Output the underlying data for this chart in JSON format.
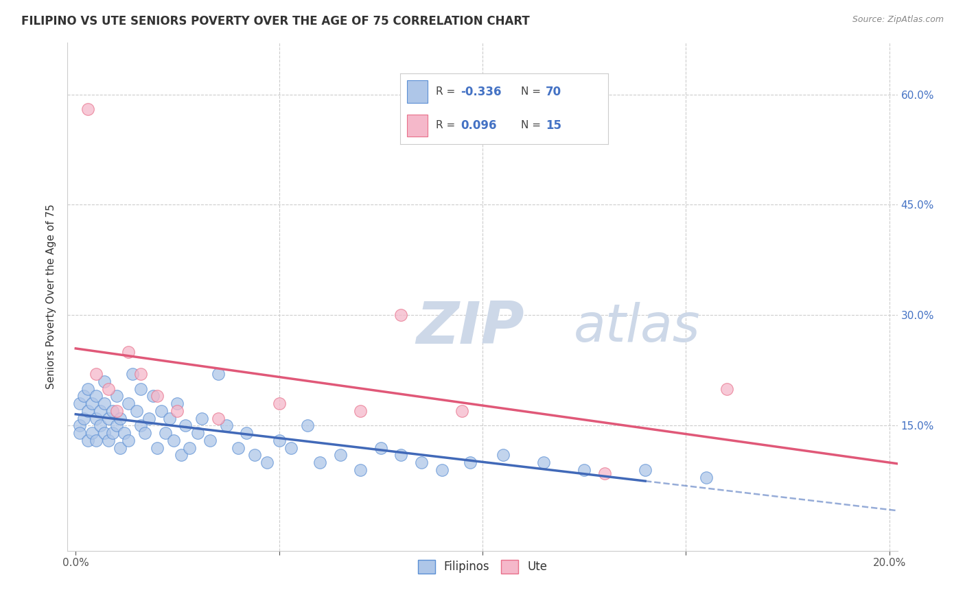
{
  "title": "FILIPINO VS UTE SENIORS POVERTY OVER THE AGE OF 75 CORRELATION CHART",
  "source": "Source: ZipAtlas.com",
  "xlim": [
    -0.002,
    0.202
  ],
  "ylim": [
    -0.02,
    0.67
  ],
  "filipinos_R": -0.336,
  "filipinos_N": 70,
  "ute_R": 0.096,
  "ute_N": 15,
  "blue_fill": "#aec6e8",
  "blue_edge": "#5b8fd4",
  "pink_fill": "#f5b8ca",
  "pink_edge": "#e8708a",
  "blue_line": "#4169b8",
  "pink_line": "#e05878",
  "watermark_color": "#cdd8e8",
  "grid_color": "#cccccc",
  "right_label_color": "#4472C4",
  "title_color": "#333333",
  "source_color": "#888888",
  "ylabel_color": "#333333",
  "legend_text_color": "#444444",
  "legend_value_color": "#4472C4",
  "filipinos_x": [
    0.001,
    0.001,
    0.001,
    0.002,
    0.002,
    0.003,
    0.003,
    0.003,
    0.004,
    0.004,
    0.005,
    0.005,
    0.005,
    0.006,
    0.006,
    0.007,
    0.007,
    0.007,
    0.008,
    0.008,
    0.009,
    0.009,
    0.01,
    0.01,
    0.011,
    0.011,
    0.012,
    0.013,
    0.013,
    0.014,
    0.015,
    0.016,
    0.016,
    0.017,
    0.018,
    0.019,
    0.02,
    0.021,
    0.022,
    0.023,
    0.024,
    0.025,
    0.026,
    0.027,
    0.028,
    0.03,
    0.031,
    0.033,
    0.035,
    0.037,
    0.04,
    0.042,
    0.044,
    0.047,
    0.05,
    0.053,
    0.057,
    0.06,
    0.065,
    0.07,
    0.075,
    0.08,
    0.085,
    0.09,
    0.097,
    0.105,
    0.115,
    0.125,
    0.14,
    0.155
  ],
  "filipinos_y": [
    0.18,
    0.15,
    0.14,
    0.19,
    0.16,
    0.13,
    0.17,
    0.2,
    0.14,
    0.18,
    0.16,
    0.13,
    0.19,
    0.15,
    0.17,
    0.14,
    0.18,
    0.21,
    0.13,
    0.16,
    0.14,
    0.17,
    0.15,
    0.19,
    0.12,
    0.16,
    0.14,
    0.18,
    0.13,
    0.22,
    0.17,
    0.15,
    0.2,
    0.14,
    0.16,
    0.19,
    0.12,
    0.17,
    0.14,
    0.16,
    0.13,
    0.18,
    0.11,
    0.15,
    0.12,
    0.14,
    0.16,
    0.13,
    0.22,
    0.15,
    0.12,
    0.14,
    0.11,
    0.1,
    0.13,
    0.12,
    0.15,
    0.1,
    0.11,
    0.09,
    0.12,
    0.11,
    0.1,
    0.09,
    0.1,
    0.11,
    0.1,
    0.09,
    0.09,
    0.08
  ],
  "ute_x": [
    0.003,
    0.005,
    0.008,
    0.01,
    0.013,
    0.016,
    0.02,
    0.025,
    0.035,
    0.05,
    0.07,
    0.08,
    0.095,
    0.13,
    0.16
  ],
  "ute_y": [
    0.58,
    0.22,
    0.2,
    0.17,
    0.25,
    0.22,
    0.19,
    0.17,
    0.16,
    0.18,
    0.17,
    0.3,
    0.17,
    0.085,
    0.2
  ],
  "trendline_solid_end": 0.14,
  "trendline_dashed_start": 0.14,
  "trendline_dashed_end": 0.202
}
